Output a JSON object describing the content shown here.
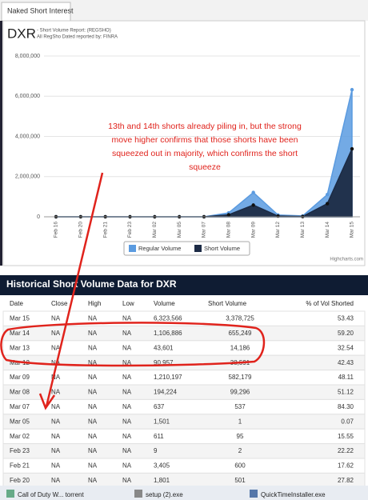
{
  "tab": "Naked Short Interest",
  "chart_data": {
    "type": "area",
    "title": "DXR",
    "subtitle": [
      "- Short Volume Report: (REGSHO)",
      "All RegSho Dated reported by: FINRA"
    ],
    "categories": [
      "Feb 16",
      "Feb 20",
      "Feb 21",
      "Feb 23",
      "Mar 02",
      "Mar 05",
      "Mar 07",
      "Mar 08",
      "Mar 09",
      "Mar 12",
      "Mar 13",
      "Mar 14",
      "Mar 15"
    ],
    "series": [
      {
        "name": "Regular Volume",
        "color": "#5b9be0",
        "values": [
          1000,
          1801,
          3405,
          9,
          611,
          1501,
          637,
          194224,
          1210197,
          90957,
          43601,
          1106886,
          6323566
        ]
      },
      {
        "name": "Short Volume",
        "color": "#1c2b45",
        "values": [
          300,
          501,
          600,
          2,
          95,
          1,
          537,
          99296,
          582179,
          38591,
          14186,
          655249,
          3378725
        ]
      }
    ],
    "ylim": [
      0,
      8000000
    ],
    "yticks": [
      0,
      {
        "value": 2000000,
        "label": "2,000,000"
      },
      {
        "value": 4000000,
        "label": "4,000,000"
      },
      {
        "value": 6000000,
        "label": "6,000,000"
      },
      {
        "value": 8000000,
        "label": "8,000,000"
      }
    ],
    "grid": true,
    "legend": "bottom",
    "credit": "Highcharts.com",
    "annotation": [
      "13th and 14th shorts already piling in, but the strong",
      "move higher confirms that those shorts have been",
      "squeezed out in majority, which confirms the short",
      "squeeze"
    ]
  },
  "table": {
    "title": "Historical Short Volume Data for DXR",
    "columns": [
      "Date",
      "Close",
      "High",
      "Low",
      "Volume",
      "Short Volume",
      "% of Vol Shorted"
    ],
    "rows": [
      [
        "Mar 15",
        "NA",
        "NA",
        "NA",
        "6,323,566",
        "3,378,725",
        "53.43"
      ],
      [
        "Mar 14",
        "NA",
        "NA",
        "NA",
        "1,106,886",
        "655,249",
        "59.20"
      ],
      [
        "Mar 13",
        "NA",
        "NA",
        "NA",
        "43,601",
        "14,186",
        "32.54"
      ],
      [
        "Mar 12",
        "NA",
        "NA",
        "NA",
        "90,957",
        "38,591",
        "42.43"
      ],
      [
        "Mar 09",
        "NA",
        "NA",
        "NA",
        "1,210,197",
        "582,179",
        "48.11"
      ],
      [
        "Mar 08",
        "NA",
        "NA",
        "NA",
        "194,224",
        "99,296",
        "51.12"
      ],
      [
        "Mar 07",
        "NA",
        "NA",
        "NA",
        "637",
        "537",
        "84.30"
      ],
      [
        "Mar 05",
        "NA",
        "NA",
        "NA",
        "1,501",
        "1",
        "0.07"
      ],
      [
        "Mar 02",
        "NA",
        "NA",
        "NA",
        "611",
        "95",
        "15.55"
      ],
      [
        "Feb 23",
        "NA",
        "NA",
        "NA",
        "9",
        "2",
        "22.22"
      ],
      [
        "Feb 21",
        "NA",
        "NA",
        "NA",
        "3,405",
        "600",
        "17.62"
      ],
      [
        "Feb 20",
        "NA",
        "NA",
        "NA",
        "1,801",
        "501",
        "27.82"
      ]
    ]
  },
  "taskbar": [
    "Call of Duty W... torrent",
    "setup (2).exe",
    "QuickTimeInstaller.exe"
  ]
}
